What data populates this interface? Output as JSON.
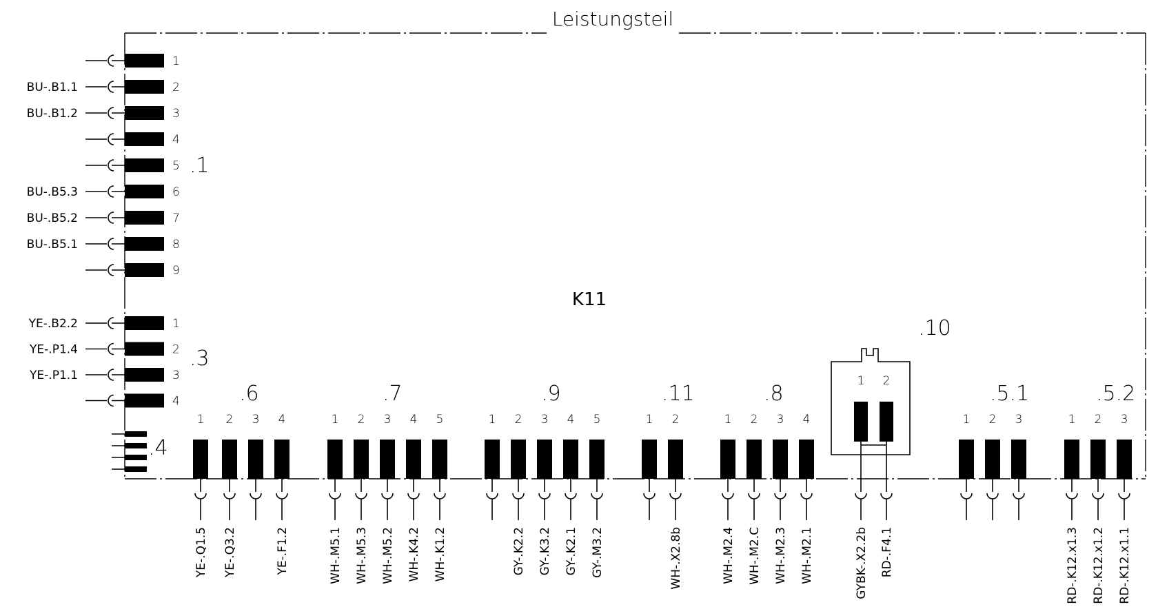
{
  "title": "Leistungsteil",
  "component": "K11",
  "left_connectors": [
    {
      "group": ".1",
      "pins": [
        {
          "num": "1",
          "wire": ""
        },
        {
          "num": "2",
          "wire": "BU-.B1.1"
        },
        {
          "num": "3",
          "wire": "BU-.B1.2"
        },
        {
          "num": "4",
          "wire": ""
        },
        {
          "num": "5",
          "wire": ""
        },
        {
          "num": "6",
          "wire": "BU-.B5.3"
        },
        {
          "num": "7",
          "wire": "BU-.B5.2"
        },
        {
          "num": "8",
          "wire": "BU-.B5.1"
        },
        {
          "num": "9",
          "wire": ""
        }
      ]
    },
    {
      "group": ".3",
      "pins": [
        {
          "num": "1",
          "wire": "YE-.B2.2"
        },
        {
          "num": "2",
          "wire": "YE-.P1.4"
        },
        {
          "num": "3",
          "wire": "YE-.P1.1"
        },
        {
          "num": "4",
          "wire": ""
        }
      ]
    }
  ],
  "small_connector": {
    "group": ".4",
    "pin_count": 4
  },
  "bottom_connectors": [
    {
      "group": ".6",
      "pins": [
        {
          "num": "1",
          "wire": "YE-.Q1.5"
        },
        {
          "num": "2",
          "wire": "YE-.Q3.2"
        },
        {
          "num": "3",
          "wire": ""
        },
        {
          "num": "4",
          "wire": "YE-.F1.2"
        }
      ]
    },
    {
      "group": ".7",
      "pins": [
        {
          "num": "1",
          "wire": "WH-.M5.1"
        },
        {
          "num": "2",
          "wire": "WH-.M5.3"
        },
        {
          "num": "3",
          "wire": "WH-.M5.2"
        },
        {
          "num": "4",
          "wire": "WH-.K4.2"
        },
        {
          "num": "5",
          "wire": "WH-.K1.2"
        }
      ]
    },
    {
      "group": ".9",
      "pins": [
        {
          "num": "1",
          "wire": ""
        },
        {
          "num": "2",
          "wire": "GY-.K2.2"
        },
        {
          "num": "3",
          "wire": "GY-.K3.2"
        },
        {
          "num": "4",
          "wire": "GY-.K2.1"
        },
        {
          "num": "5",
          "wire": "GY-.M3.2"
        }
      ]
    },
    {
      "group": ".11",
      "pins": [
        {
          "num": "1",
          "wire": ""
        },
        {
          "num": "2",
          "wire": "WH-.X2.8b"
        }
      ]
    },
    {
      "group": ".8",
      "pins": [
        {
          "num": "1",
          "wire": "WH-.M2.4"
        },
        {
          "num": "2",
          "wire": "WH-.M2.C"
        },
        {
          "num": "3",
          "wire": "WH-.M2.3"
        },
        {
          "num": "4",
          "wire": "WH-.M2.1"
        }
      ]
    },
    {
      "group": ".10",
      "pins": [
        {
          "num": "1",
          "wire": "GYBK-.X2.2b"
        },
        {
          "num": "2",
          "wire": "RD-.F4.1"
        }
      ]
    },
    {
      "group": ".5.1",
      "pins": [
        {
          "num": "1",
          "wire": ""
        },
        {
          "num": "2",
          "wire": ""
        },
        {
          "num": "3",
          "wire": ""
        }
      ]
    },
    {
      "group": ".5.2",
      "pins": [
        {
          "num": "1",
          "wire": "RD-.K12.x1.3"
        },
        {
          "num": "2",
          "wire": "RD-.K12.x1.2"
        },
        {
          "num": "3",
          "wire": "RD-.K12.x1.1"
        }
      ]
    }
  ]
}
